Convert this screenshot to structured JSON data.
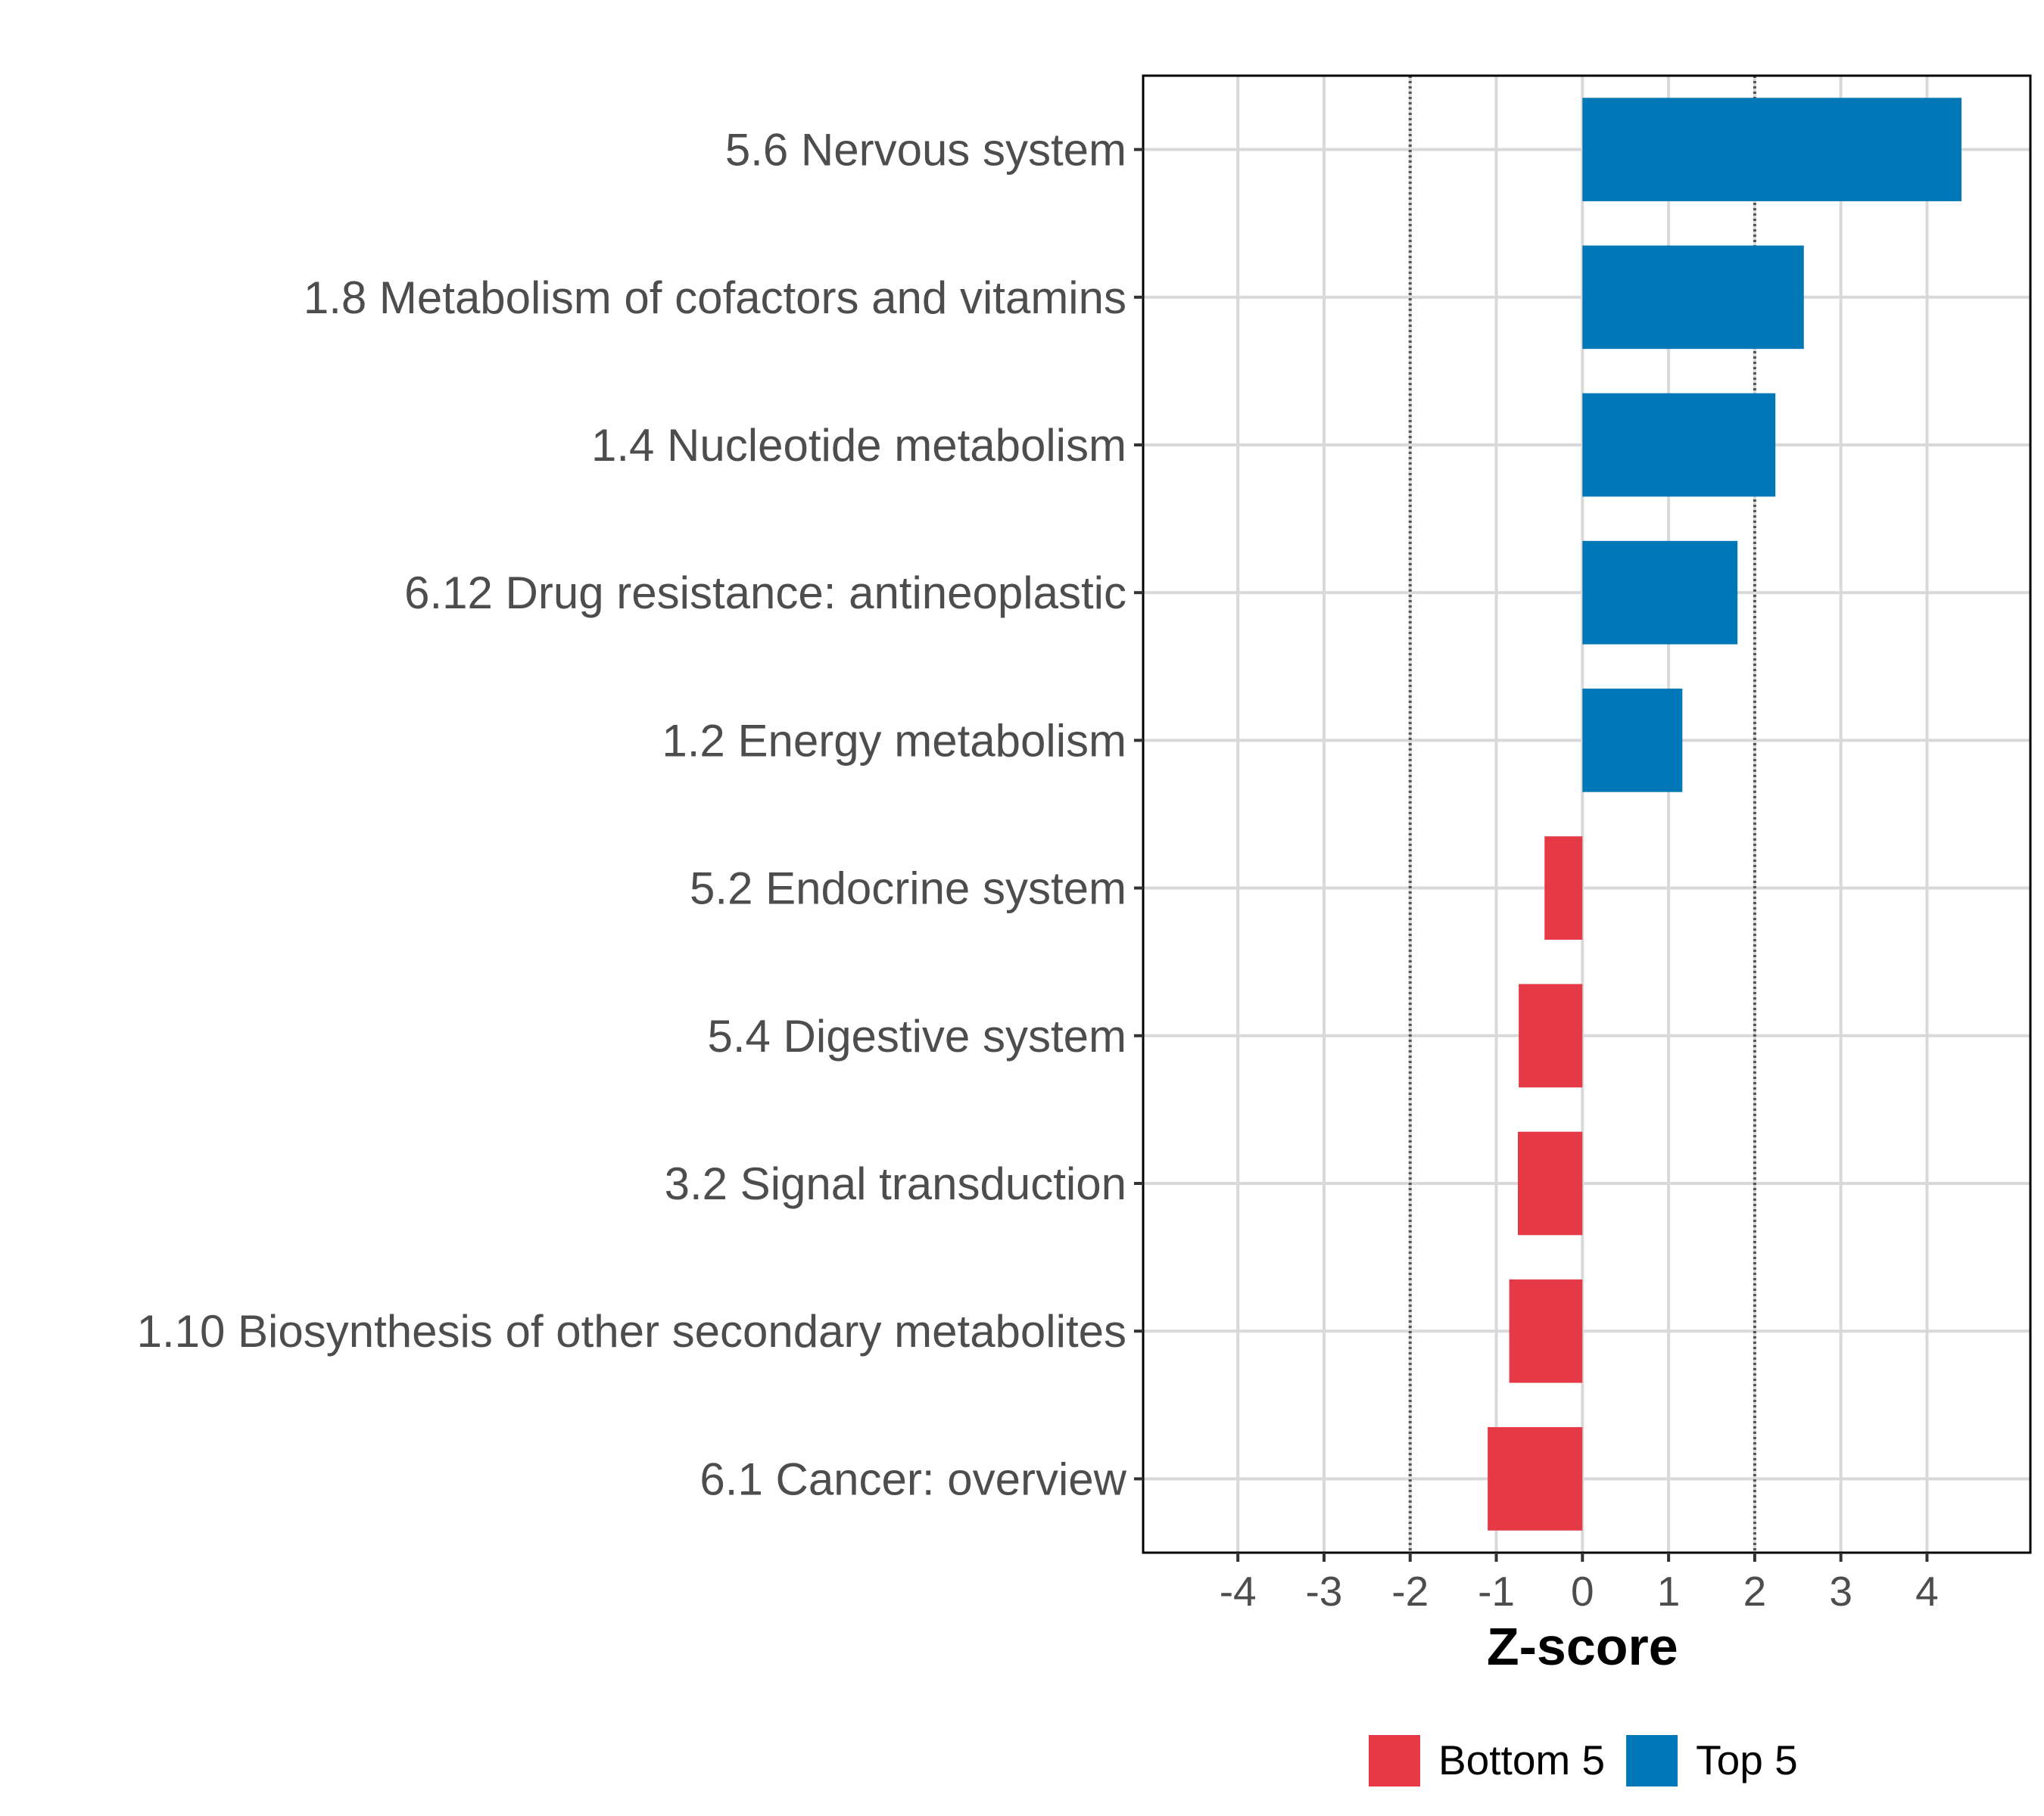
{
  "chart_data": {
    "type": "bar",
    "orientation": "horizontal",
    "categories": [
      "5.6 Nervous system",
      "1.8 Metabolism of cofactors and vitamins",
      "1.4 Nucleotide metabolism",
      "6.12 Drug resistance: antineoplastic",
      "1.2 Energy metabolism",
      "5.2 Endocrine system",
      "5.4 Digestive system",
      "3.2 Signal transduction",
      "1.10 Biosynthesis of other secondary metabolites",
      "6.1 Cancer: overview"
    ],
    "values": [
      4.4,
      2.57,
      2.24,
      1.8,
      1.16,
      -0.44,
      -0.74,
      -0.75,
      -0.85,
      -1.1
    ],
    "groups": [
      "Top 5",
      "Top 5",
      "Top 5",
      "Top 5",
      "Top 5",
      "Bottom 5",
      "Bottom 5",
      "Bottom 5",
      "Bottom 5",
      "Bottom 5"
    ],
    "xlabel": "Z-score",
    "ylabel": "",
    "xlim": [
      -5.1,
      5.2
    ],
    "xticks": [
      "-4",
      "-3",
      "-2",
      "-1",
      "0",
      "1",
      "2",
      "3",
      "4"
    ],
    "reference_lines": [
      -2,
      2
    ],
    "grid": true,
    "legend": {
      "position": "bottom",
      "entries": [
        {
          "label": "Bottom 5",
          "color": "#E63946"
        },
        {
          "label": "Top 5",
          "color": "#0077B6"
        }
      ]
    }
  }
}
